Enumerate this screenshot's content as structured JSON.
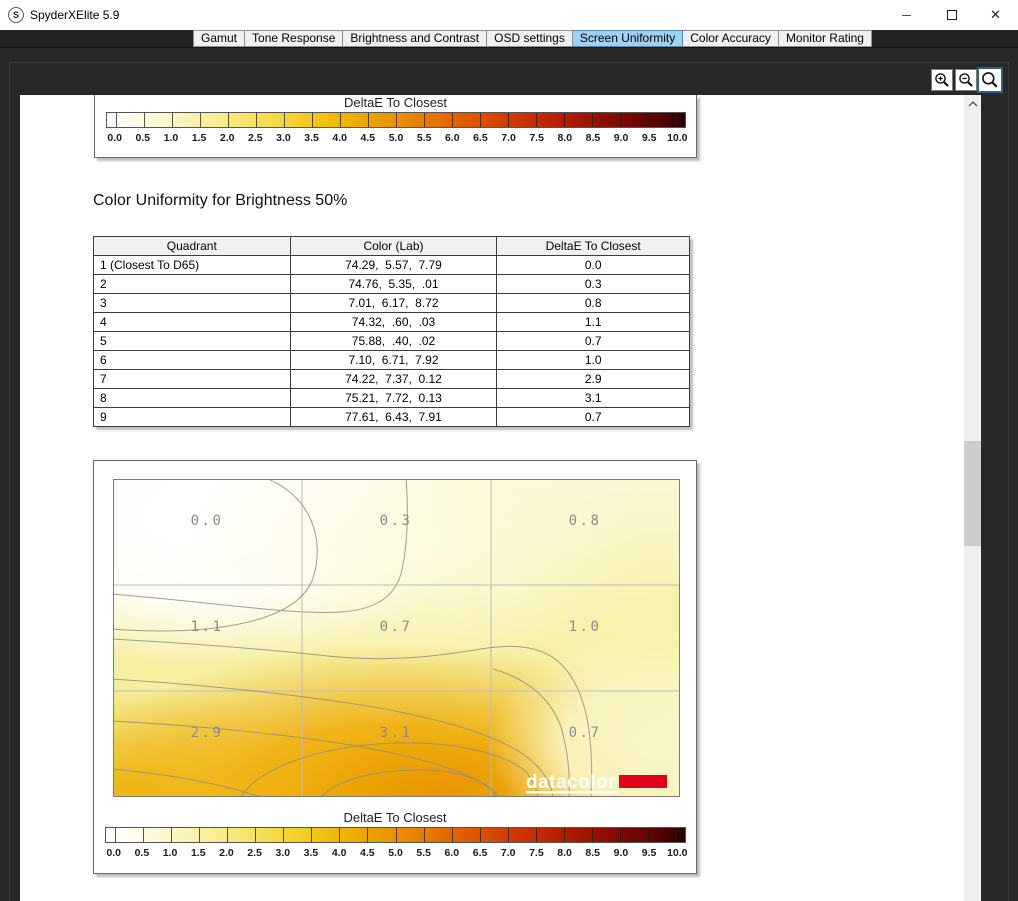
{
  "window": {
    "title": "SpyderXElite 5.9",
    "logo_letter": "S",
    "controls": {
      "minimize": "─",
      "close": "✕"
    }
  },
  "tabs": [
    {
      "label": "Gamut",
      "selected": false
    },
    {
      "label": "Tone Response",
      "selected": false
    },
    {
      "label": "Brightness and Contrast",
      "selected": false
    },
    {
      "label": "OSD settings",
      "selected": false
    },
    {
      "label": "Screen Uniformity",
      "selected": true
    },
    {
      "label": "Color Accuracy",
      "selected": false
    },
    {
      "label": "Monitor Rating",
      "selected": false
    }
  ],
  "toolbar": {
    "zoom_buttons": [
      "zoom-in",
      "zoom-out",
      "zoom-page"
    ]
  },
  "heading": "Color Uniformity for Brightness 50%",
  "scale": {
    "title": "DeltaE To Closest",
    "tick_labels": [
      "0.0",
      "0.5",
      "1.0",
      "1.5",
      "2.0",
      "2.5",
      "3.0",
      "3.5",
      "4.0",
      "4.5",
      "5.0",
      "5.5",
      "6.0",
      "6.5",
      "7.0",
      "7.5",
      "8.0",
      "8.5",
      "9.0",
      "9.5",
      "10.0"
    ],
    "gradient_stops": [
      "#ffffff",
      "#fffdeb",
      "#fcf8d0",
      "#faf2ae",
      "#f8eb8a",
      "#f6e263",
      "#f4d83e",
      "#f2c91d",
      "#f0b804",
      "#eda400",
      "#ea9000",
      "#e67b00",
      "#e16400",
      "#da4f00",
      "#d13a00",
      "#c22900",
      "#ad1a00",
      "#941000",
      "#780800",
      "#590300",
      "#2a0100"
    ]
  },
  "table": {
    "columns": [
      "Quadrant",
      "Color (Lab)",
      "DeltaE To Closest"
    ],
    "rows": [
      [
        "1 (Closest To D65)",
        "74.29,  5.57,  7.79",
        "0.0"
      ],
      [
        "2",
        "74.76,  5.35,  .01",
        "0.3"
      ],
      [
        "3",
        "7.01,  6.17,  8.72",
        "0.8"
      ],
      [
        "4",
        "74.32,  .60,  .03",
        "1.1"
      ],
      [
        "5",
        "75.88,  .40,  .02",
        "0.7"
      ],
      [
        "6",
        "7.10,  6.71,  7.92",
        "1.0"
      ],
      [
        "7",
        "74.22,  7.37,  0.12",
        "2.9"
      ],
      [
        "8",
        "75.21,  7.72,  0.13",
        "3.1"
      ],
      [
        "9",
        "77.61,  6.43,  7.91",
        "0.7"
      ]
    ]
  },
  "map": {
    "values": [
      [
        "0.0",
        "0.3",
        "0.8"
      ],
      [
        "1.1",
        "0.7",
        "1.0"
      ],
      [
        "2.9",
        "3.1",
        "0.7"
      ]
    ],
    "logo": "datacolor",
    "logo_color": "#e2001a"
  },
  "colors": {
    "selected_tab": "#9ed1f3",
    "dark_bg": "#282828"
  }
}
